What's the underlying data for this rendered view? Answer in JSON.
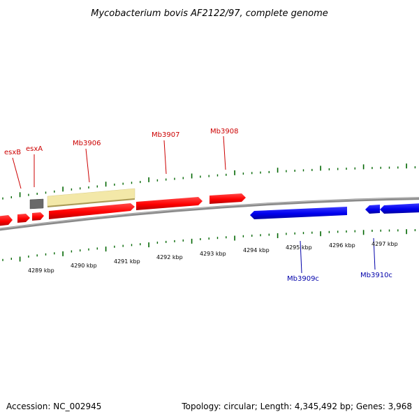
{
  "title": "Mycobacterium bovis AF2122/97, complete genome",
  "footer": {
    "accession": "Accession: NC_002945",
    "summary": "Topology: circular; Length: 4,345,492 bp; Genes: 3,968"
  },
  "axis": {
    "tick_labels": [
      "4289 kbp",
      "4290 kbp",
      "4291 kbp",
      "4292 kbp",
      "4293 kbp",
      "4294 kbp",
      "4295 kbp",
      "4296 kbp",
      "4297 kbp"
    ]
  },
  "genes": {
    "forward_labels": [
      "esxB",
      "esxA",
      "Mb3906",
      "Mb3907",
      "Mb3908"
    ],
    "reverse_labels": [
      "Mb3909c",
      "Mb3910c"
    ]
  },
  "colors": {
    "forward_gene": "#ff0000",
    "reverse_gene": "#0000ee",
    "misc_feature": "#f5e9a6",
    "gap_feature": "#666666",
    "backbone": "#888888",
    "tick": "#006600",
    "forward_label": "#cc0000",
    "reverse_label": "#0000aa"
  }
}
